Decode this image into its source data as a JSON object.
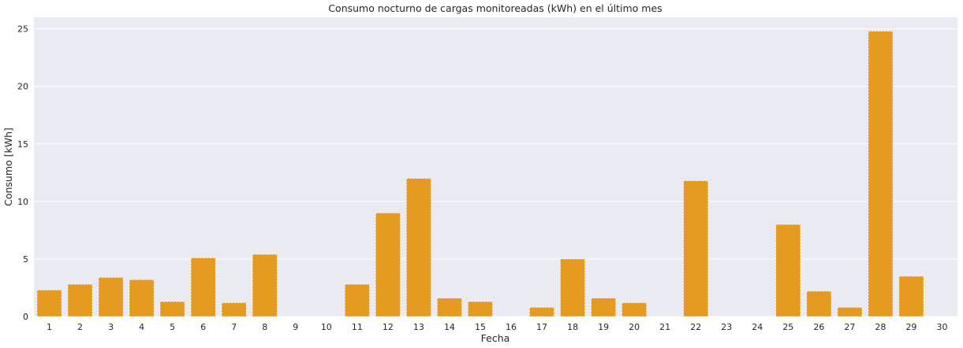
{
  "chart_data": {
    "type": "bar",
    "title": "Consumo nocturno de cargas monitoreadas (kWh) en el último mes",
    "xlabel": "Fecha",
    "ylabel": "Consumo [kWh]",
    "categories": [
      "1",
      "2",
      "3",
      "4",
      "5",
      "6",
      "7",
      "8",
      "9",
      "10",
      "11",
      "12",
      "13",
      "14",
      "15",
      "16",
      "17",
      "18",
      "19",
      "20",
      "21",
      "22",
      "23",
      "24",
      "25",
      "26",
      "27",
      "28",
      "29",
      "30"
    ],
    "values": [
      2.3,
      2.8,
      3.4,
      3.2,
      1.3,
      5.1,
      1.2,
      5.4,
      0,
      0,
      2.8,
      9.0,
      12.0,
      1.6,
      1.3,
      0,
      0.8,
      5.0,
      1.6,
      1.2,
      0,
      11.8,
      0,
      0,
      8.0,
      2.2,
      0.8,
      24.8,
      3.5,
      0
    ],
    "ylim": [
      0,
      26
    ],
    "yticks": [
      0,
      5,
      10,
      15,
      20,
      25
    ],
    "grid": true,
    "colors": {
      "bar": "#e59b1f",
      "bar_edge": "#ffffff",
      "background": "#eaeaf2",
      "grid": "#ffffff"
    }
  }
}
